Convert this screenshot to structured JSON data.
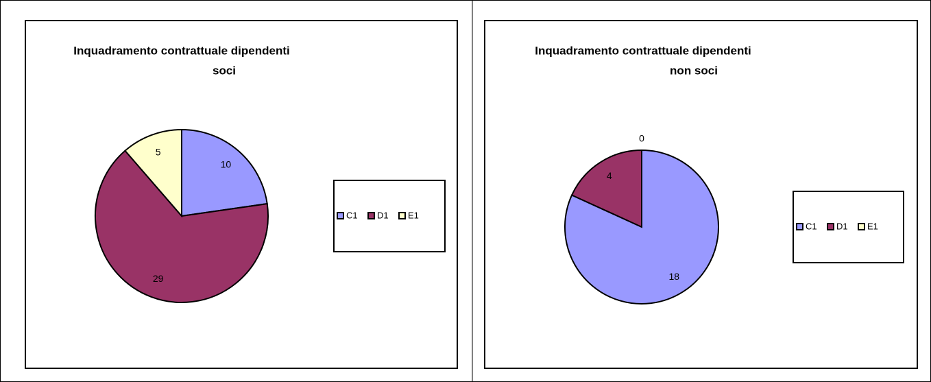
{
  "chart_data": [
    {
      "type": "pie",
      "title": [
        "Inquadramento  contrattuale dipendenti",
        "soci"
      ],
      "categories": [
        "C1",
        "D1",
        "E1"
      ],
      "values": [
        10,
        29,
        5
      ],
      "colors": [
        "#9999ff",
        "#993366",
        "#ffffcc"
      ],
      "legend": "right"
    },
    {
      "type": "pie",
      "title": [
        "Inquadramento  contrattuale dipendenti",
        "non soci"
      ],
      "categories": [
        "C1",
        "D1",
        "E1"
      ],
      "values": [
        18,
        4,
        0
      ],
      "colors": [
        "#9999ff",
        "#993366",
        "#ffffcc"
      ],
      "legend": "right"
    }
  ]
}
